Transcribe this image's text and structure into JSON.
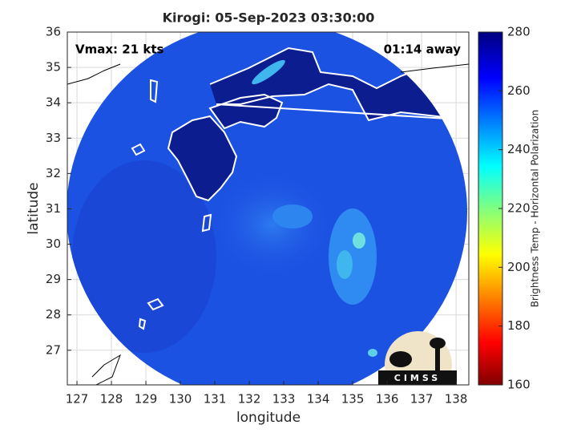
{
  "chart_data": {
    "type": "map",
    "title": "Kirogi: 05-Sep-2023 03:30:00",
    "xlabel": "longitude",
    "ylabel": "latitude",
    "xlim": [
      126.72,
      138.37
    ],
    "ylim": [
      26.02,
      36
    ],
    "xticks": [
      127,
      128,
      129,
      130,
      131,
      132,
      133,
      134,
      135,
      136,
      137,
      138
    ],
    "yticks": [
      27,
      28,
      29,
      30,
      31,
      32,
      33,
      34,
      35,
      36
    ],
    "grid": true,
    "annotations": [
      "Vmax: 21 kts",
      "01:14 away"
    ],
    "colorbar": {
      "label": "Brightness Temp - Horizontal Polarization",
      "lim": [
        160,
        280
      ],
      "ticks": [
        160,
        180,
        200,
        220,
        240,
        260,
        280
      ]
    },
    "logo": "CIMSS"
  }
}
